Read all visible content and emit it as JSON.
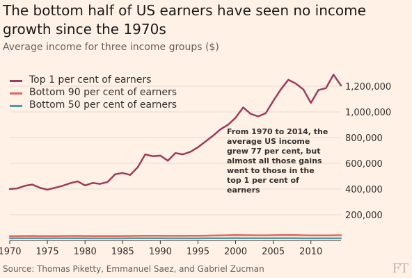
{
  "chart_data": {
    "type": "line",
    "title": "The bottom half of US earners have seen no income growth since the 1970s",
    "subtitle": "Average income for three income groups ($)",
    "xlabel": "",
    "ylabel": "",
    "xlim": [
      1970,
      2014
    ],
    "ylim": [
      0,
      1330000
    ],
    "x_ticks": [
      1970,
      1975,
      1980,
      1985,
      1990,
      1995,
      2000,
      2005,
      2010
    ],
    "x_tick_labels": [
      "1970",
      "1975",
      "1980",
      "1985",
      "1990",
      "1995",
      "2000",
      "2005",
      "2010"
    ],
    "y_ticks": [
      200000,
      400000,
      600000,
      800000,
      1000000,
      1200000
    ],
    "y_tick_labels": [
      "200,000",
      "400,000",
      "600,000",
      "800,000",
      "1,000,000",
      "1,200,000"
    ],
    "y_axis_side": "right",
    "grid": true,
    "legend_position": "top-left",
    "colors": {
      "background": "#fff1e5",
      "grid": "#e8dcd0",
      "top1": "#9d3b5b",
      "bottom90": "#e0665c",
      "bottom50": "#4e9aa5"
    },
    "x": [
      1970,
      1971,
      1972,
      1973,
      1974,
      1975,
      1976,
      1977,
      1978,
      1979,
      1980,
      1981,
      1982,
      1983,
      1984,
      1985,
      1986,
      1987,
      1988,
      1989,
      1990,
      1991,
      1992,
      1993,
      1994,
      1995,
      1996,
      1997,
      1998,
      1999,
      2000,
      2001,
      2002,
      2003,
      2004,
      2005,
      2006,
      2007,
      2008,
      2009,
      2010,
      2011,
      2012,
      2013,
      2014
    ],
    "series": [
      {
        "name": "Top 1 per cent of earners",
        "color": "#9d3b5b",
        "values": [
          400000,
          405000,
          425000,
          435000,
          410000,
          395000,
          410000,
          425000,
          445000,
          460000,
          428000,
          447000,
          440000,
          455000,
          515000,
          525000,
          510000,
          570000,
          670000,
          655000,
          660000,
          620000,
          680000,
          670000,
          690000,
          725000,
          770000,
          815000,
          865000,
          900000,
          955000,
          1035000,
          985000,
          965000,
          990000,
          1085000,
          1175000,
          1250000,
          1220000,
          1175000,
          1070000,
          1170000,
          1185000,
          1290000,
          1205000
        ]
      },
      {
        "name": "Bottom 90 per cent of earners",
        "color": "#e0665c",
        "values": [
          33000,
          33500,
          34500,
          35000,
          34000,
          33500,
          34000,
          34500,
          35000,
          35500,
          34500,
          34000,
          33500,
          33500,
          34000,
          34500,
          35000,
          35500,
          36000,
          36500,
          36000,
          35500,
          35500,
          35500,
          36000,
          36500,
          37500,
          38500,
          39500,
          40500,
          41500,
          41000,
          40500,
          40000,
          40000,
          40500,
          41500,
          42500,
          41500,
          40000,
          39500,
          39500,
          39500,
          40000,
          40500
        ]
      },
      {
        "name": "Bottom 50 per cent of earners",
        "color": "#4e9aa5",
        "values": [
          17000,
          17200,
          17600,
          17800,
          17400,
          17000,
          17200,
          17400,
          17600,
          17700,
          17200,
          17000,
          16800,
          16700,
          16900,
          17000,
          17100,
          17200,
          17300,
          17400,
          17200,
          17000,
          16900,
          16800,
          16900,
          17000,
          17200,
          17500,
          17800,
          18000,
          18200,
          18000,
          17800,
          17600,
          17500,
          17500,
          17700,
          17800,
          17500,
          17000,
          16800,
          16700,
          16700,
          16800,
          16900
        ]
      }
    ],
    "annotation": "From 1970 to 2014, the average US income grew 77 per cent, but almost all those gains went to those in the top 1 per cent of earners",
    "source": "Source: Thomas Piketty, Emmanuel Saez, and Gabriel Zucman",
    "logo": "FT"
  }
}
